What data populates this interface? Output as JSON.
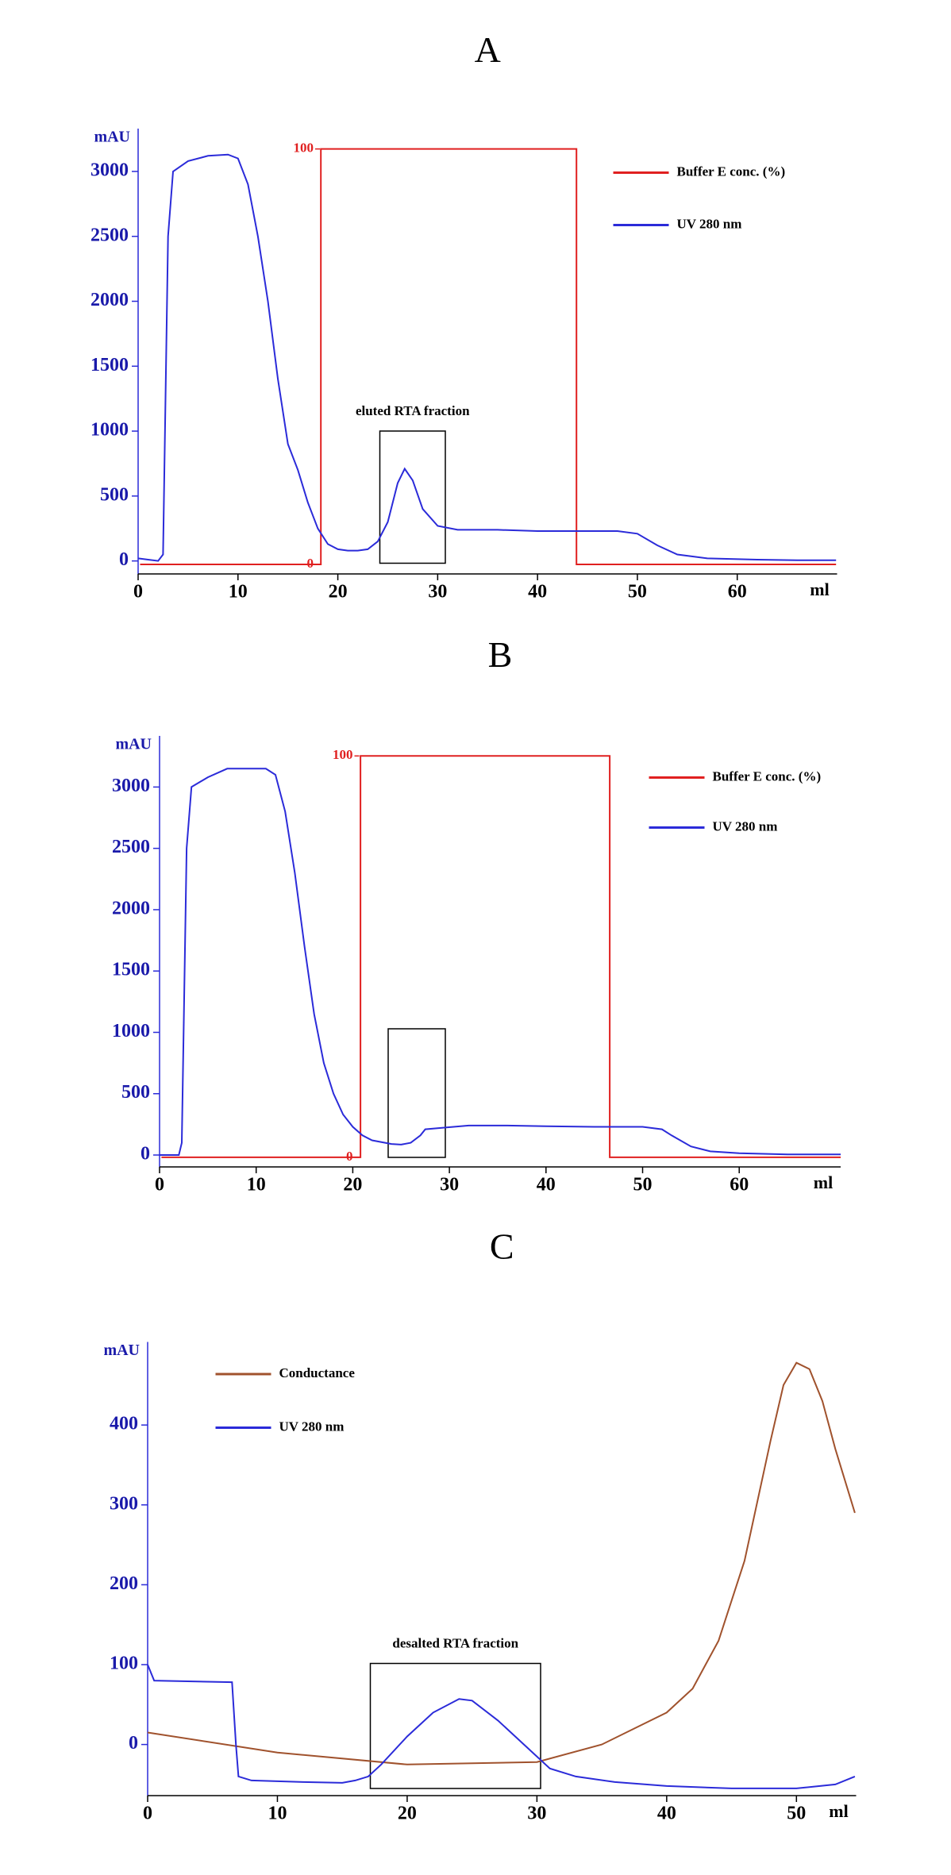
{
  "chart_data": [
    {
      "type": "line",
      "title": "A",
      "x_label": "ml",
      "y_label": "mAU",
      "xlim": [
        0,
        70
      ],
      "ylim": [
        -100,
        3330
      ],
      "xticks": [
        0,
        10,
        20,
        30,
        40,
        50,
        60
      ],
      "yticks": [
        0,
        500,
        1000,
        1500,
        2000,
        2500,
        3000
      ],
      "y2lim": [
        -2.3,
        104.9
      ],
      "y2ticks": [
        0,
        100
      ],
      "annotation": "eluted RTA fraction",
      "series": [
        {
          "name": "Buffer E conc. (%)",
          "color": "#e02020",
          "axis": "y2",
          "x": [
            0.2,
            18.3,
            18.3,
            43.9,
            43.9,
            69.9
          ],
          "values": [
            0,
            0,
            100,
            100,
            0,
            0
          ]
        },
        {
          "name": "UV 280 nm",
          "color": "#2b2bd9",
          "x": [
            0,
            1,
            2,
            2.5,
            3,
            3.5,
            5,
            7,
            9,
            10,
            11,
            12,
            13,
            14,
            15,
            16,
            17,
            18,
            19,
            20,
            21,
            22,
            23,
            24,
            25,
            26,
            26.7,
            27.5,
            28.5,
            30,
            32,
            36,
            40,
            44,
            48,
            50,
            52,
            54,
            57,
            62,
            66,
            69.9
          ],
          "values": [
            20,
            10,
            0,
            50,
            2500,
            3000,
            3080,
            3120,
            3130,
            3100,
            2900,
            2500,
            2000,
            1400,
            900,
            700,
            450,
            250,
            130,
            90,
            80,
            80,
            90,
            150,
            300,
            600,
            710,
            620,
            400,
            270,
            240,
            240,
            230,
            230,
            230,
            210,
            120,
            50,
            20,
            10,
            5,
            5
          ]
        }
      ]
    },
    {
      "type": "line",
      "title": "B",
      "x_label": "ml",
      "y_label": "mAU",
      "xlim": [
        0,
        70.5
      ],
      "ylim": [
        -97,
        3417
      ],
      "xticks": [
        0,
        10,
        20,
        30,
        40,
        50,
        60
      ],
      "yticks": [
        0,
        500,
        1000,
        1500,
        2000,
        2500,
        3000
      ],
      "y2lim": [
        -2.4,
        105
      ],
      "y2ticks": [
        0,
        100
      ],
      "series": [
        {
          "name": "Buffer E conc. (%)",
          "color": "#e02020",
          "axis": "y2",
          "x": [
            0.2,
            20.8,
            20.8,
            46.6,
            46.6,
            70.5
          ],
          "values": [
            0,
            0,
            100,
            100,
            0,
            0
          ]
        },
        {
          "name": "UV 280 nm",
          "color": "#2b2bd9",
          "x": [
            0,
            2,
            2.3,
            2.8,
            3.3,
            5,
            7,
            9,
            11,
            12,
            13,
            14,
            15,
            16,
            17,
            18,
            19,
            20,
            21,
            22,
            24,
            25,
            26,
            27,
            27.5,
            29,
            32,
            36,
            40,
            45,
            50,
            52,
            53,
            55,
            57,
            60,
            65,
            70.5
          ],
          "values": [
            0,
            0,
            100,
            2500,
            3000,
            3080,
            3150,
            3150,
            3150,
            3100,
            2800,
            2300,
            1700,
            1150,
            750,
            500,
            330,
            230,
            160,
            120,
            90,
            85,
            100,
            160,
            210,
            220,
            240,
            240,
            235,
            230,
            230,
            210,
            160,
            70,
            30,
            15,
            5,
            5
          ]
        }
      ]
    },
    {
      "type": "line",
      "title": "C",
      "x_label": "ml",
      "y_label": "mAU",
      "xlim": [
        0,
        54.6
      ],
      "ylim": [
        -64,
        504
      ],
      "xticks": [
        0,
        10,
        20,
        30,
        40,
        50
      ],
      "yticks": [
        0,
        100,
        200,
        300,
        400
      ],
      "annotation": "desalted RTA fraction",
      "series": [
        {
          "name": "Conductance",
          "color": "#a0522d",
          "x": [
            0,
            10,
            20,
            30,
            35,
            40,
            42,
            44,
            46,
            48,
            49,
            50,
            51,
            52,
            53,
            54.5
          ],
          "values": [
            15,
            -10,
            -25,
            -22,
            0,
            40,
            70,
            130,
            230,
            380,
            450,
            478,
            470,
            430,
            370,
            290
          ]
        },
        {
          "name": "UV 280 nm",
          "color": "#2b2bd9",
          "x": [
            0,
            0.5,
            6.5,
            6.8,
            7,
            8,
            12,
            15,
            16,
            17,
            18,
            20,
            22,
            24,
            25,
            27,
            29,
            31,
            33,
            36,
            40,
            45,
            50,
            53,
            54.5
          ],
          "values": [
            100,
            80,
            78,
            0,
            -40,
            -45,
            -47,
            -48,
            -45,
            -40,
            -25,
            10,
            40,
            57,
            55,
            30,
            0,
            -30,
            -40,
            -47,
            -52,
            -55,
            -55,
            -50,
            -40
          ]
        }
      ]
    }
  ]
}
